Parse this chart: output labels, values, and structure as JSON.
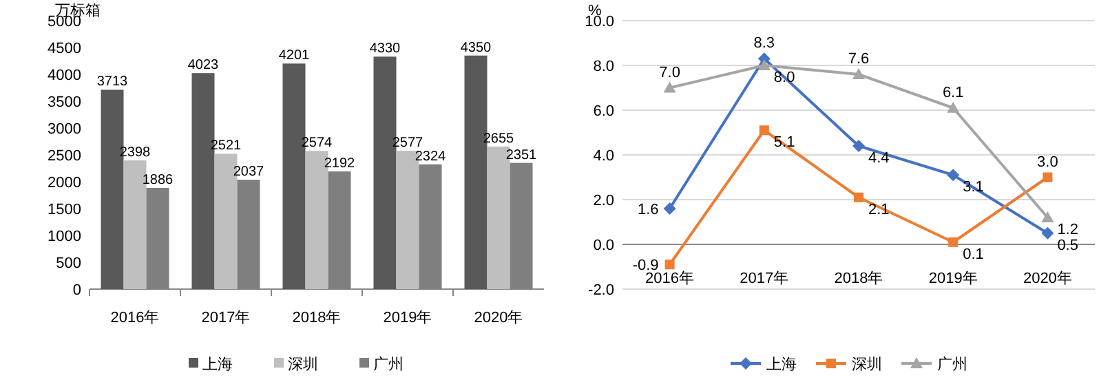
{
  "chart_data": [
    {
      "type": "bar",
      "ylabel": "万标箱",
      "categories": [
        "2016年",
        "2017年",
        "2018年",
        "2019年",
        "2020年"
      ],
      "series": [
        {
          "name": "上海",
          "color": "#595959",
          "values": [
            3713,
            4023,
            4201,
            4330,
            4350
          ]
        },
        {
          "name": "深圳",
          "color": "#bfbfbf",
          "values": [
            2398,
            2521,
            2574,
            2577,
            2655
          ]
        },
        {
          "name": "广州",
          "color": "#7f7f7f",
          "values": [
            1886,
            2037,
            2192,
            2324,
            2351
          ]
        }
      ],
      "ylim": [
        0,
        5000
      ],
      "yticks": [
        0,
        500,
        1000,
        1500,
        2000,
        2500,
        3000,
        3500,
        4000,
        4500,
        5000
      ],
      "data_labels": true,
      "grid": false,
      "legend": "bottom"
    },
    {
      "type": "line",
      "ylabel": "%",
      "categories": [
        "2016年",
        "2017年",
        "2018年",
        "2019年",
        "2020年"
      ],
      "series": [
        {
          "name": "上海",
          "color": "#4472c4",
          "marker": "diamond",
          "values": [
            1.6,
            8.3,
            4.4,
            3.1,
            0.5
          ],
          "value_labels": [
            "1.6",
            "8.3",
            "4.4",
            "3.1",
            "0.5"
          ]
        },
        {
          "name": "深圳",
          "color": "#ed7d31",
          "marker": "square",
          "values": [
            -0.9,
            5.1,
            2.1,
            0.1,
            3.0
          ],
          "value_labels": [
            "-0.9",
            "5.1",
            "2.1",
            "0.1",
            "3.0"
          ]
        },
        {
          "name": "广州",
          "color": "#a5a5a5",
          "marker": "triangle",
          "values": [
            7.0,
            8.0,
            7.6,
            6.1,
            1.2
          ],
          "value_labels": [
            "7.0",
            "8.0",
            "7.6",
            "6.1",
            "1.2"
          ]
        }
      ],
      "ylim": [
        -2,
        10
      ],
      "yticks": [
        {
          "value": -2,
          "label": "-2.0"
        },
        {
          "value": 0,
          "label": "0.0"
        },
        {
          "value": 2,
          "label": "2.0"
        },
        {
          "value": 4,
          "label": "4.0"
        },
        {
          "value": 6,
          "label": "6.0"
        },
        {
          "value": 8,
          "label": "8.0"
        },
        {
          "value": 10,
          "label": "10.0"
        }
      ],
      "grid": "y",
      "legend": "bottom"
    }
  ]
}
